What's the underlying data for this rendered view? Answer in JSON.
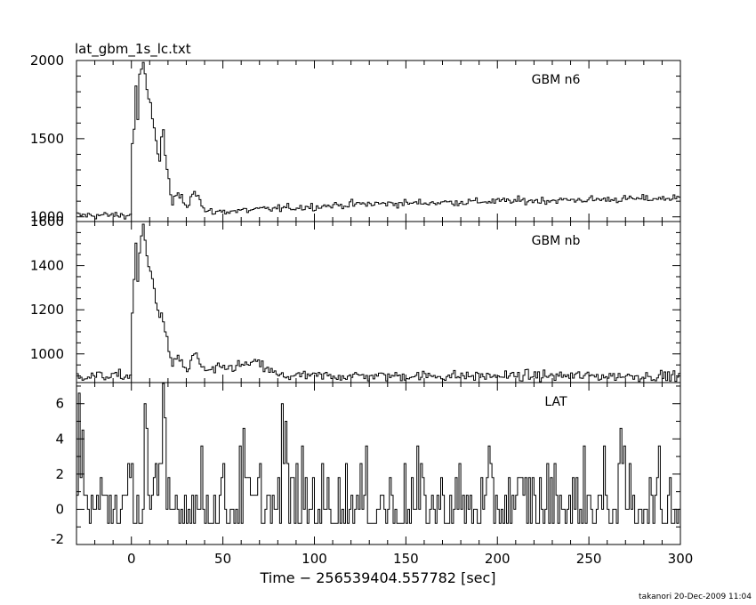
{
  "file_title": "lat_gbm_1s_lc.txt",
  "footer": "takanori 20-Dec-2009 11:04",
  "chart_data": {
    "type": "line",
    "xlabel": "Time − 256539404.557782 [sec]",
    "xlim": [
      -30,
      300
    ],
    "x_ticks": [
      0,
      50,
      100,
      150,
      200,
      250,
      300
    ],
    "x_minor_step": 10,
    "x_step": 1,
    "grid": false,
    "panels": [
      {
        "name": "GBM n6",
        "ylim": [
          970,
          2000
        ],
        "y_ticks": [
          1000,
          1500,
          2000
        ],
        "y_minor_step": 100,
        "baseline_pre": 1010,
        "noise": 20,
        "peaks": [
          {
            "t": 0,
            "v": 1470
          },
          {
            "t": 1,
            "v": 1560
          },
          {
            "t": 2,
            "v": 1850
          },
          {
            "t": 3,
            "v": 1620
          },
          {
            "t": 4,
            "v": 1900
          },
          {
            "t": 6,
            "v": 1990
          },
          {
            "t": 8,
            "v": 1800
          },
          {
            "t": 10,
            "v": 1710
          },
          {
            "t": 12,
            "v": 1560
          },
          {
            "t": 14,
            "v": 1420
          },
          {
            "t": 15,
            "v": 1360
          },
          {
            "t": 16,
            "v": 1510
          },
          {
            "t": 17,
            "v": 1560
          },
          {
            "t": 18,
            "v": 1380
          },
          {
            "t": 20,
            "v": 1230
          },
          {
            "t": 22,
            "v": 1080
          },
          {
            "t": 25,
            "v": 1150
          },
          {
            "t": 30,
            "v": 1070
          },
          {
            "t": 34,
            "v": 1180
          },
          {
            "t": 40,
            "v": 1030
          },
          {
            "t": 60,
            "v": 1040
          },
          {
            "t": 120,
            "v": 1080
          },
          {
            "t": 200,
            "v": 1100
          },
          {
            "t": 300,
            "v": 1120
          }
        ]
      },
      {
        "name": "GBM nb",
        "ylim": [
          870,
          1600
        ],
        "y_ticks": [
          1000,
          1200,
          1400,
          1600
        ],
        "y_minor_step": 50,
        "baseline_pre": 900,
        "noise": 20,
        "peaks": [
          {
            "t": 0,
            "v": 1180
          },
          {
            "t": 1,
            "v": 1350
          },
          {
            "t": 2,
            "v": 1490
          },
          {
            "t": 3,
            "v": 1320
          },
          {
            "t": 4,
            "v": 1460
          },
          {
            "t": 6,
            "v": 1590
          },
          {
            "t": 8,
            "v": 1430
          },
          {
            "t": 10,
            "v": 1370
          },
          {
            "t": 12,
            "v": 1300
          },
          {
            "t": 14,
            "v": 1200
          },
          {
            "t": 15,
            "v": 1150
          },
          {
            "t": 16,
            "v": 1200
          },
          {
            "t": 17,
            "v": 1160
          },
          {
            "t": 18,
            "v": 1100
          },
          {
            "t": 20,
            "v": 1020
          },
          {
            "t": 22,
            "v": 940
          },
          {
            "t": 25,
            "v": 990
          },
          {
            "t": 30,
            "v": 920
          },
          {
            "t": 34,
            "v": 1000
          },
          {
            "t": 40,
            "v": 920
          },
          {
            "t": 68,
            "v": 960
          },
          {
            "t": 80,
            "v": 900
          },
          {
            "t": 300,
            "v": 900
          }
        ]
      },
      {
        "name": "LAT",
        "ylim": [
          -2,
          7.2
        ],
        "y_ticks": [
          -2,
          0,
          2,
          4,
          6
        ],
        "y_minor_step": 1,
        "spikes": [
          {
            "t": -29,
            "v": 6.6
          },
          {
            "t": -27,
            "v": 4.5
          },
          {
            "t": 7,
            "v": 6.0
          },
          {
            "t": 8,
            "v": 4.6
          },
          {
            "t": 17,
            "v": 7.2
          },
          {
            "t": 18,
            "v": 5.2
          },
          {
            "t": 61,
            "v": 4.6
          },
          {
            "t": 82,
            "v": 6.0
          },
          {
            "t": 84,
            "v": 5.0
          },
          {
            "t": 267,
            "v": 4.6
          }
        ]
      }
    ]
  }
}
